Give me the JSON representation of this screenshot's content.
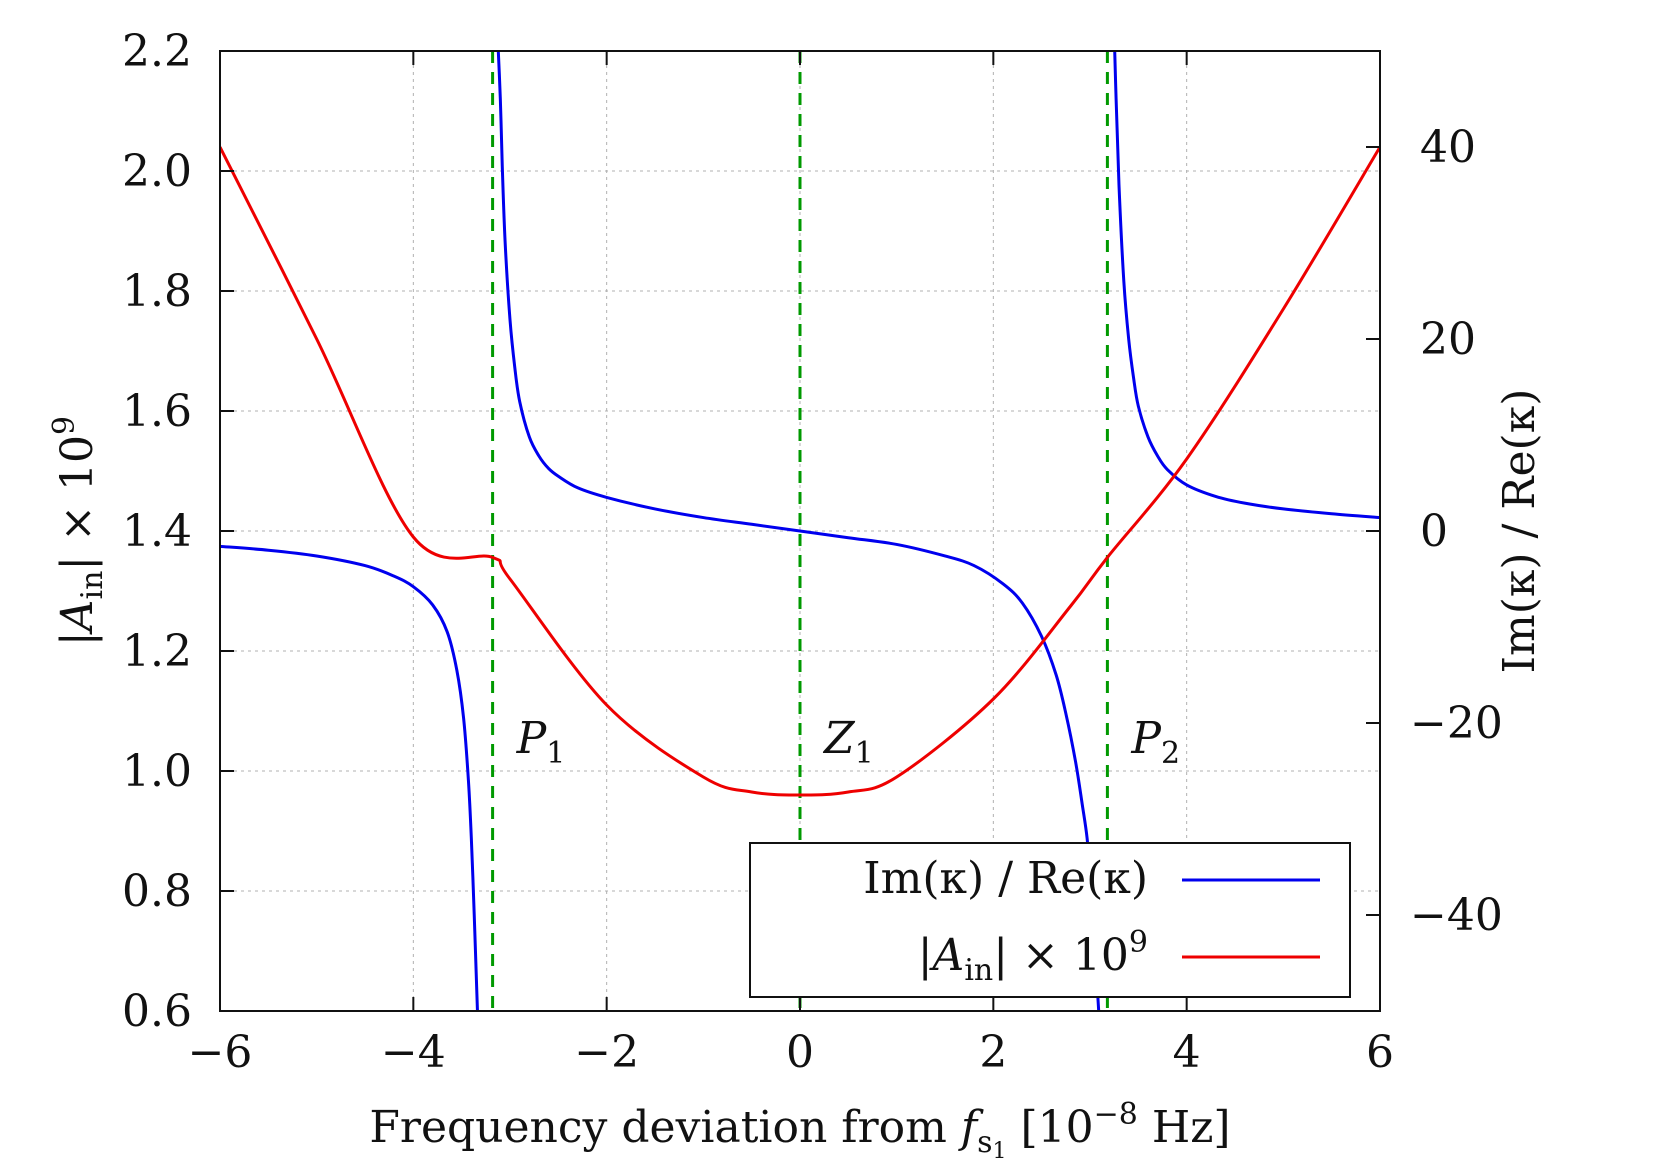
{
  "chart_data": {
    "type": "line",
    "xlabel": {
      "main": "Frequency deviation from ",
      "sym": "f",
      "sub": "s",
      "subsub": "1",
      "unit_open": " [10",
      "unit_exp": "−8",
      "unit_close": " Hz]"
    },
    "ylabel_left": {
      "pre": "|",
      "sym": "A",
      "sub": "in",
      "post": "| × 10",
      "exp": "9"
    },
    "ylabel_right": "Im(κ) / Re(κ)",
    "xlim": [
      -6,
      6
    ],
    "ylim_left": [
      0.6,
      2.2
    ],
    "ylim_right": [
      -50,
      50
    ],
    "xticks": [
      -6,
      -4,
      -2,
      0,
      2,
      4,
      6
    ],
    "xtick_labels": [
      "−6",
      "−4",
      "−2",
      "0",
      "2",
      "4",
      "6"
    ],
    "yticks_left": [
      0.6,
      0.8,
      1.0,
      1.2,
      1.4,
      1.6,
      1.8,
      2.0,
      2.2
    ],
    "ytick_labels_left": [
      "0.6",
      "0.8",
      "1.0",
      "1.2",
      "1.4",
      "1.6",
      "1.8",
      "2.0",
      "2.2"
    ],
    "yticks_right": [
      -40,
      -20,
      0,
      20,
      40
    ],
    "ytick_labels_right": [
      "−40",
      "−20",
      "0",
      "20",
      "40"
    ],
    "grid": true,
    "legend_position": "bottom-right",
    "markers": [
      {
        "x": -3.18,
        "sym": "P",
        "sub": "1"
      },
      {
        "x": 0.0,
        "sym": "Z",
        "sub": "1"
      },
      {
        "x": 3.18,
        "sym": "P",
        "sub": "2"
      }
    ],
    "series": [
      {
        "name": "Im(κ) / Re(κ)",
        "axis": "right",
        "color": "#0000ee",
        "segments": [
          {
            "x": [
              -6.0,
              -5.5,
              -5.0,
              -4.5,
              -4.2,
              -4.0,
              -3.8,
              -3.65,
              -3.55,
              -3.48,
              -3.43,
              -3.4,
              -3.37,
              -3.35,
              -3.33
            ],
            "y": [
              -1.6,
              -2.0,
              -2.6,
              -3.6,
              -4.7,
              -5.8,
              -7.7,
              -10.5,
              -14.5,
              -19.5,
              -26.0,
              -32.0,
              -40.0,
              -46.0,
              -52.0
            ]
          },
          {
            "x": [
              -3.13,
              -3.1,
              -3.08,
              -3.05,
              -3.0,
              -2.95,
              -2.9,
              -2.8,
              -2.7,
              -2.6,
              -2.5,
              -2.3,
              -2.0,
              -1.5,
              -1.0,
              -0.5,
              0.0,
              0.5,
              1.0,
              1.5,
              1.8,
              2.1,
              2.3,
              2.5,
              2.65,
              2.75,
              2.85,
              2.92,
              2.97,
              3.0,
              3.03,
              3.06,
              3.09,
              3.11
            ],
            "y": [
              52.0,
              45.0,
              38.0,
              30.0,
              22.0,
              17.0,
              13.5,
              9.8,
              7.8,
              6.5,
              5.7,
              4.5,
              3.5,
              2.3,
              1.4,
              0.7,
              0.0,
              -0.7,
              -1.4,
              -2.6,
              -3.6,
              -5.5,
              -7.5,
              -11.0,
              -15.0,
              -19.0,
              -24.0,
              -28.5,
              -32.0,
              -36.0,
              -40.0,
              -45.0,
              -50.0,
              -53.0
            ]
          },
          {
            "x": [
              3.25,
              3.27,
              3.3,
              3.35,
              3.4,
              3.45,
              3.5,
              3.6,
              3.7,
              3.8,
              4.0,
              4.3,
              4.6,
              5.0,
              5.5,
              6.0
            ],
            "y": [
              52.0,
              45.0,
              36.0,
              26.0,
              20.0,
              16.0,
              13.0,
              9.8,
              7.8,
              6.4,
              4.8,
              3.6,
              2.9,
              2.3,
              1.8,
              1.4
            ]
          }
        ]
      },
      {
        "name": "|Ain| × 10^9",
        "axis": "left",
        "color": "#ee0000",
        "x": [
          -6.0,
          -5.0,
          -4.0,
          -3.18,
          -3.0,
          -2.0,
          -1.0,
          -0.5,
          0.0,
          0.5,
          1.0,
          2.0,
          2.8,
          3.18,
          4.0,
          5.0,
          6.0
        ],
        "y": [
          2.04,
          1.72,
          1.39,
          1.356,
          1.32,
          1.11,
          0.99,
          0.965,
          0.96,
          0.965,
          0.99,
          1.12,
          1.275,
          1.356,
          1.52,
          1.77,
          2.04
        ]
      }
    ],
    "legend": {
      "entry1": "Im(κ) / Re(κ)",
      "entry2": {
        "pre": "|",
        "sym": "A",
        "sub": "in",
        "post": "| × 10",
        "exp": "9"
      }
    }
  },
  "colors": {
    "blue": "#0000ee",
    "red": "#ee0000",
    "green_dashed": "#009900",
    "grid": "#b0b0b0"
  }
}
